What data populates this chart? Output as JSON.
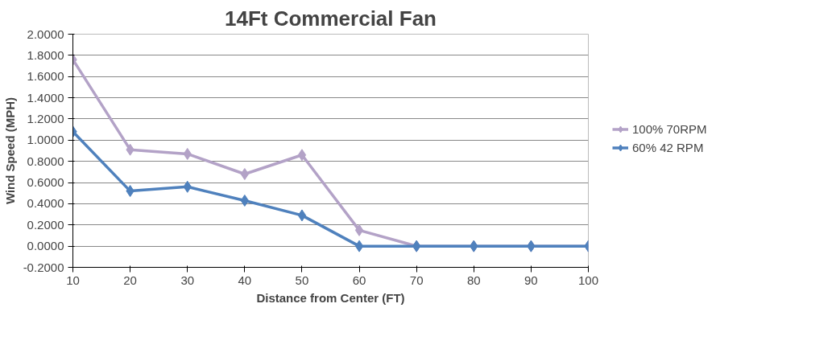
{
  "chart_data": {
    "type": "line",
    "title": "14Ft Commercial Fan",
    "xlabel": "Distance from Center (FT)",
    "ylabel": "Wind Speed (MPH)",
    "categories": [
      "10",
      "20",
      "30",
      "40",
      "50",
      "60",
      "70",
      "80",
      "90",
      "100"
    ],
    "series": [
      {
        "name": "100% 70RPM",
        "color": "#b3a2c7",
        "values": [
          1.76,
          0.91,
          0.87,
          0.68,
          0.86,
          0.15,
          0,
          0,
          0,
          0
        ]
      },
      {
        "name": "60% 42 RPM",
        "color": "#4f81bd",
        "values": [
          1.08,
          0.52,
          0.56,
          0.43,
          0.29,
          0,
          0,
          0,
          0,
          0
        ]
      }
    ],
    "ylim": [
      -0.2,
      2.0
    ],
    "yticks": [
      {
        "value": -0.2,
        "label": "-0.2000"
      },
      {
        "value": 0,
        "label": "0.0000"
      },
      {
        "value": 0.2,
        "label": "0.2000"
      },
      {
        "value": 0.4,
        "label": "0.4000"
      },
      {
        "value": 0.6,
        "label": "0.6000"
      },
      {
        "value": 0.8,
        "label": "0.8000"
      },
      {
        "value": 1.0,
        "label": "1.0000"
      },
      {
        "value": 1.2,
        "label": "1.2000"
      },
      {
        "value": 1.4,
        "label": "1.4000"
      },
      {
        "value": 1.6,
        "label": "1.6000"
      },
      {
        "value": 1.8,
        "label": "1.8000"
      },
      {
        "value": 2.0,
        "label": "2.0000"
      }
    ],
    "grid": "y",
    "legend": "right",
    "marker": "diamond",
    "line_style": "solid"
  }
}
